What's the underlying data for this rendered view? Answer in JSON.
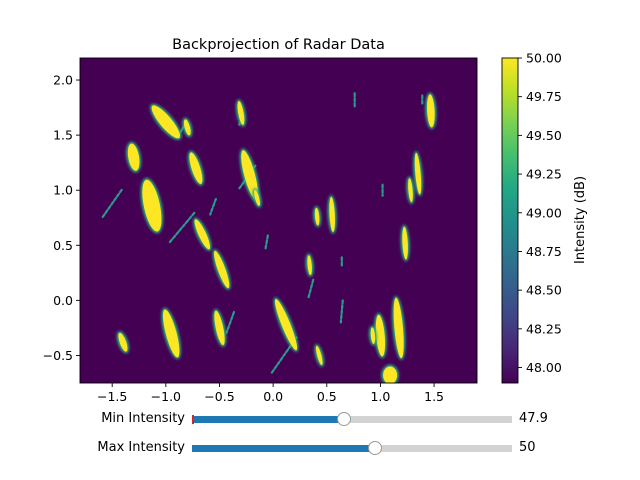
{
  "chart_data": {
    "type": "heatmap",
    "title": "Backprojection of Radar Data",
    "xlabel": "",
    "ylabel": "",
    "xlim": [
      -1.8,
      1.9
    ],
    "ylim": [
      -0.75,
      2.2
    ],
    "x_ticks": [
      -1.5,
      -1.0,
      -0.5,
      0.0,
      0.5,
      1.0,
      1.5
    ],
    "x_tick_labels": [
      "−1.5",
      "−1.0",
      "−0.5",
      "0.0",
      "0.5",
      "1.0",
      "1.5"
    ],
    "y_ticks": [
      -0.5,
      0.0,
      0.5,
      1.0,
      1.5,
      2.0
    ],
    "y_tick_labels": [
      "−0.5",
      "0.0",
      "0.5",
      "1.0",
      "1.5",
      "2.0"
    ],
    "colormap": "viridis",
    "background_color": "#440154",
    "colorbar": {
      "label": "Intensity (dB)",
      "min": 47.9,
      "max": 50.0,
      "ticks": [
        48.0,
        48.25,
        48.5,
        48.75,
        49.0,
        49.25,
        49.5,
        49.75,
        50.0
      ],
      "tick_labels": [
        "48.00",
        "48.25",
        "48.50",
        "48.75",
        "49.00",
        "49.25",
        "49.50",
        "49.75",
        "50.00"
      ]
    },
    "blobs": [
      {
        "x": -1.13,
        "y": 0.86,
        "w": 0.15,
        "h": 0.48,
        "rot": 12
      },
      {
        "x": -1.0,
        "y": 1.62,
        "w": 0.11,
        "h": 0.38,
        "rot": 40
      },
      {
        "x": -1.3,
        "y": 1.3,
        "w": 0.1,
        "h": 0.25,
        "rot": 10
      },
      {
        "x": -0.72,
        "y": 1.2,
        "w": 0.08,
        "h": 0.3,
        "rot": 18
      },
      {
        "x": -0.22,
        "y": 1.14,
        "w": 0.1,
        "h": 0.46,
        "rot": 15
      },
      {
        "x": -0.66,
        "y": 0.6,
        "w": 0.07,
        "h": 0.3,
        "rot": 25
      },
      {
        "x": -0.48,
        "y": 0.28,
        "w": 0.07,
        "h": 0.36,
        "rot": 20
      },
      {
        "x": -0.95,
        "y": -0.3,
        "w": 0.1,
        "h": 0.45,
        "rot": 15
      },
      {
        "x": -0.5,
        "y": -0.25,
        "w": 0.07,
        "h": 0.32,
        "rot": 12
      },
      {
        "x": 0.12,
        "y": -0.22,
        "w": 0.08,
        "h": 0.5,
        "rot": 22
      },
      {
        "x": 0.55,
        "y": 0.78,
        "w": 0.05,
        "h": 0.32,
        "rot": 3
      },
      {
        "x": 1.0,
        "y": -0.32,
        "w": 0.08,
        "h": 0.38,
        "rot": 5
      },
      {
        "x": 1.17,
        "y": -0.25,
        "w": 0.08,
        "h": 0.55,
        "rot": 5
      },
      {
        "x": 1.09,
        "y": -0.68,
        "w": 0.13,
        "h": 0.16,
        "rot": 0
      },
      {
        "x": 1.23,
        "y": 0.52,
        "w": 0.05,
        "h": 0.3,
        "rot": 3
      },
      {
        "x": 1.47,
        "y": 1.72,
        "w": 0.07,
        "h": 0.3,
        "rot": 3
      },
      {
        "x": 1.35,
        "y": 1.15,
        "w": 0.05,
        "h": 0.38,
        "rot": 5
      },
      {
        "x": 1.28,
        "y": 1.0,
        "w": 0.04,
        "h": 0.22,
        "rot": 5
      },
      {
        "x": -0.3,
        "y": 1.7,
        "w": 0.05,
        "h": 0.22,
        "rot": 10
      },
      {
        "x": -1.4,
        "y": -0.38,
        "w": 0.06,
        "h": 0.18,
        "rot": 20
      },
      {
        "x": -0.15,
        "y": 0.93,
        "w": 0.04,
        "h": 0.15,
        "rot": 15
      },
      {
        "x": 0.41,
        "y": 0.76,
        "w": 0.04,
        "h": 0.16,
        "rot": 5
      },
      {
        "x": 0.34,
        "y": 0.32,
        "w": 0.04,
        "h": 0.18,
        "rot": 5
      },
      {
        "x": 0.43,
        "y": -0.5,
        "w": 0.04,
        "h": 0.18,
        "rot": 15
      },
      {
        "x": -0.8,
        "y": 1.57,
        "w": 0.05,
        "h": 0.15,
        "rot": 15
      },
      {
        "x": 0.93,
        "y": -0.32,
        "w": 0.04,
        "h": 0.15,
        "rot": 5
      }
    ],
    "streaks": [
      {
        "x": -1.5,
        "y": 0.88,
        "len": 0.3,
        "rot": 35
      },
      {
        "x": -0.85,
        "y": 0.66,
        "len": 0.35,
        "rot": 40
      },
      {
        "x": -0.4,
        "y": -0.2,
        "len": 0.2,
        "rot": 20
      },
      {
        "x": -0.24,
        "y": 1.12,
        "len": 0.25,
        "rot": 35
      },
      {
        "x": 0.1,
        "y": -0.5,
        "len": 0.4,
        "rot": 35
      },
      {
        "x": 0.64,
        "y": -0.1,
        "len": 0.2,
        "rot": 5
      },
      {
        "x": 0.76,
        "y": 1.82,
        "len": 0.12,
        "rot": 0
      },
      {
        "x": 0.64,
        "y": 0.35,
        "len": 0.08,
        "rot": 0
      },
      {
        "x": 1.02,
        "y": 1.0,
        "len": 0.1,
        "rot": 0
      },
      {
        "x": 1.39,
        "y": 1.82,
        "len": 0.08,
        "rot": 0
      },
      {
        "x": -0.06,
        "y": 0.53,
        "len": 0.12,
        "rot": 10
      },
      {
        "x": 0.35,
        "y": 0.1,
        "len": 0.18,
        "rot": 15
      },
      {
        "x": -0.85,
        "y": 1.55,
        "len": 0.18,
        "rot": 30
      },
      {
        "x": -0.3,
        "y": 1.65,
        "len": 0.12,
        "rot": 15
      },
      {
        "x": -0.56,
        "y": 0.85,
        "len": 0.15,
        "rot": 20
      }
    ]
  },
  "controls": {
    "min_intensity": {
      "label": "Min Intensity",
      "value": 47.9,
      "display": "47.9",
      "range_min": 46.0,
      "range_max": 50.0
    },
    "max_intensity": {
      "label": "Max Intensity",
      "value": 50.0,
      "display": "50",
      "range_min": 46.0,
      "range_max": 53.0
    }
  },
  "colors": {
    "slider_fill": "#1f77b4",
    "slider_track": "#d3d3d3",
    "valinit_marker": "#d62728"
  }
}
